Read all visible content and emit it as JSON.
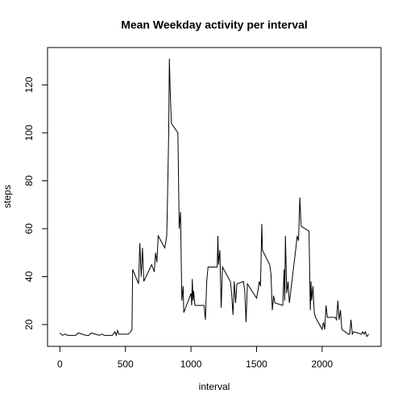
{
  "chart_data": {
    "type": "line",
    "title": "Mean Weekday activity per interval",
    "xlabel": "interval",
    "ylabel": "steps",
    "x": [
      0,
      20,
      40,
      60,
      100,
      120,
      140,
      200,
      220,
      240,
      300,
      320,
      340,
      400,
      420,
      430,
      440,
      450,
      500,
      520,
      540,
      550,
      555,
      600,
      610,
      620,
      630,
      640,
      700,
      720,
      730,
      740,
      750,
      800,
      815,
      820,
      830,
      835,
      840,
      850,
      900,
      910,
      920,
      930,
      940,
      945,
      1000,
      1005,
      1010,
      1015,
      1020,
      1030,
      1100,
      1110,
      1120,
      1130,
      1200,
      1205,
      1210,
      1220,
      1230,
      1240,
      1300,
      1310,
      1320,
      1330,
      1340,
      1350,
      1400,
      1410,
      1420,
      1430,
      1500,
      1510,
      1520,
      1530,
      1540,
      1545,
      1600,
      1610,
      1620,
      1630,
      1640,
      1700,
      1710,
      1715,
      1720,
      1730,
      1740,
      1750,
      1800,
      1810,
      1820,
      1830,
      1840,
      1900,
      1910,
      1915,
      1920,
      1930,
      1940,
      1950,
      2000,
      2010,
      2020,
      2030,
      2040,
      2100,
      2110,
      2120,
      2130,
      2140,
      2150,
      2200,
      2210,
      2220,
      2230,
      2240,
      2300,
      2310,
      2320,
      2330,
      2340,
      2355
    ],
    "series": [
      {
        "name": "steps",
        "color": "#000000",
        "values": [
          16.5,
          15.5,
          16,
          15.5,
          15.5,
          15.5,
          16.5,
          15.5,
          15.5,
          16.5,
          15.5,
          16,
          15.5,
          15.5,
          17,
          15.5,
          17.5,
          16,
          16,
          16,
          17,
          18,
          43,
          37,
          54,
          40,
          52,
          38,
          45,
          42,
          50,
          46,
          57,
          52,
          57,
          70,
          100,
          131,
          120,
          104,
          100,
          60,
          67,
          30,
          36,
          25,
          33,
          28,
          39,
          30,
          34,
          28,
          28,
          22,
          38,
          44,
          44,
          57,
          45,
          51,
          27,
          44,
          38,
          33,
          24,
          38,
          29,
          37,
          38,
          34,
          21,
          37,
          31,
          34,
          38,
          36,
          62,
          51,
          45,
          41,
          26,
          32,
          29,
          28,
          43,
          30,
          57,
          33,
          38,
          29,
          52,
          57,
          55,
          73,
          61,
          59,
          26,
          38,
          30,
          36,
          25,
          23,
          18,
          21,
          18,
          28,
          23,
          23,
          22,
          30,
          22,
          26,
          18,
          16,
          16,
          22,
          16,
          17,
          16,
          17,
          16,
          17,
          15,
          16
        ]
      }
    ],
    "xlim": [
      -94.2,
      2449.2
    ],
    "xticks": [
      0,
      500,
      1000,
      1500,
      2000
    ],
    "ylim": [
      10.9,
      135.6
    ],
    "yticks": [
      20,
      40,
      60,
      80,
      100,
      120
    ]
  }
}
